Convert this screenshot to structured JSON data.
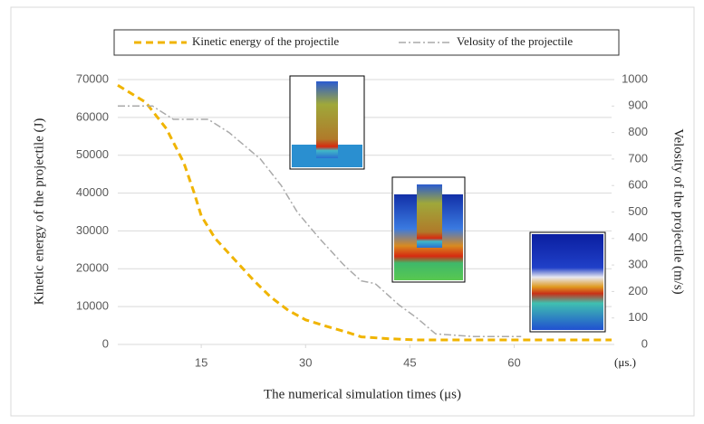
{
  "chart_data": {
    "type": "line",
    "legend_position": "top",
    "x_unit_label": "(μs.)",
    "xlabel": "The numerical simulation times (μs)",
    "ylabel": "Kinetic energy of the projectile (J)",
    "y2label": "Velosity of the projectile (m/s)",
    "xlim": [
      3,
      74
    ],
    "xticks": [
      15,
      30,
      45,
      60
    ],
    "ylim": [
      0,
      70000
    ],
    "yticks": [
      0,
      10000,
      20000,
      30000,
      40000,
      50000,
      60000,
      70000
    ],
    "y2lim": [
      0,
      1000
    ],
    "y2ticks": [
      0,
      100,
      200,
      300,
      400,
      500,
      600,
      700,
      800,
      900,
      1000
    ],
    "grid": true,
    "series": [
      {
        "name": "Kinetic energy of the projectile",
        "color": "#f0b400",
        "dash": "8 5",
        "x": [
          3,
          7,
          10,
          12.5,
          14,
          15,
          17,
          20,
          22.5,
          25,
          27.5,
          30,
          33,
          36,
          38,
          42,
          46,
          55,
          65,
          74
        ],
        "values": [
          68500,
          64000,
          57000,
          48000,
          40000,
          34000,
          28000,
          22000,
          17000,
          12500,
          9000,
          6500,
          4800,
          3200,
          2000,
          1500,
          1200,
          1200,
          1200,
          1200
        ]
      },
      {
        "name": "Velosity of the projectile",
        "color": "#aaaaaa",
        "dash": "8 3 2 3",
        "axis": "y2",
        "x": [
          3,
          8,
          11,
          16,
          19,
          23.5,
          26.5,
          28.8,
          32,
          35.5,
          38,
          40,
          43.4,
          46,
          48.7,
          54,
          59,
          61
        ],
        "values": [
          900,
          900,
          850,
          850,
          800,
          700,
          600,
          500,
          400,
          300,
          240,
          230,
          150,
          100,
          40,
          30,
          30,
          30
        ]
      }
    ]
  }
}
